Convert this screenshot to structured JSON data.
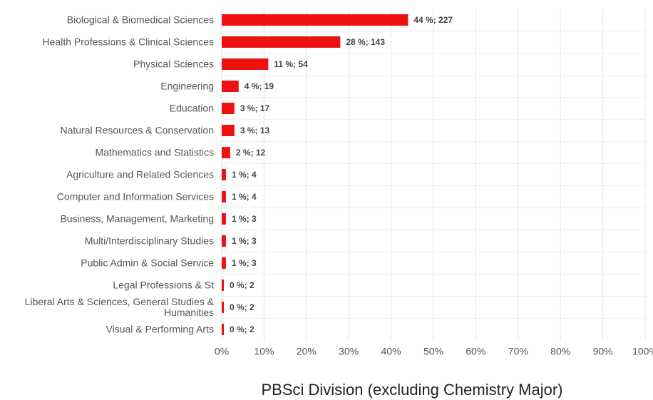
{
  "chart_data": {
    "type": "bar",
    "orientation": "horizontal",
    "title": "PBSci Division (excluding Chemistry Major)",
    "categories": [
      "Biological & Biomedical Sciences",
      "Health Professions & Clinical Sciences",
      "Physical Sciences",
      "Engineering",
      "Education",
      "Natural Resources & Conservation",
      "Mathematics and Statistics",
      "Agriculture and Related Sciences",
      "Computer and Information Services",
      "Business, Management, Marketing",
      "Multi/Interdisciplinary Studies",
      "Public Admin & Social Service",
      "Legal Professions & St",
      "Liberal Arts & Sciences, General Studies & Humanities",
      "Visual & Performing Arts"
    ],
    "values": [
      44,
      28,
      11,
      4,
      3,
      3,
      2,
      1,
      1,
      1,
      1,
      1,
      0,
      0,
      0
    ],
    "value_labels": [
      "44 %; 227",
      "28 %; 143",
      "11 %; 54",
      "4 %; 19",
      "3 %; 17",
      "3 %; 13",
      "2 %; 12",
      "1 %; 4",
      "1 %; 4",
      "1 %; 3",
      "1 %; 3",
      "1 %; 3",
      "0 %; 2",
      "0 %; 2",
      "0 %; 2"
    ],
    "color": "#ee1111",
    "xlim": [
      0,
      100
    ],
    "xticks": [
      {
        "value": 0,
        "label": "0%"
      },
      {
        "value": 10,
        "label": "10%"
      },
      {
        "value": 20,
        "label": "20%"
      },
      {
        "value": 30,
        "label": "30%"
      },
      {
        "value": 40,
        "label": "40%"
      },
      {
        "value": 50,
        "label": "50%"
      },
      {
        "value": 60,
        "label": "60%"
      },
      {
        "value": 70,
        "label": "70%"
      },
      {
        "value": 80,
        "label": "80%"
      },
      {
        "value": 90,
        "label": "90%"
      },
      {
        "value": 100,
        "label": "100%"
      }
    ],
    "grid": true
  }
}
